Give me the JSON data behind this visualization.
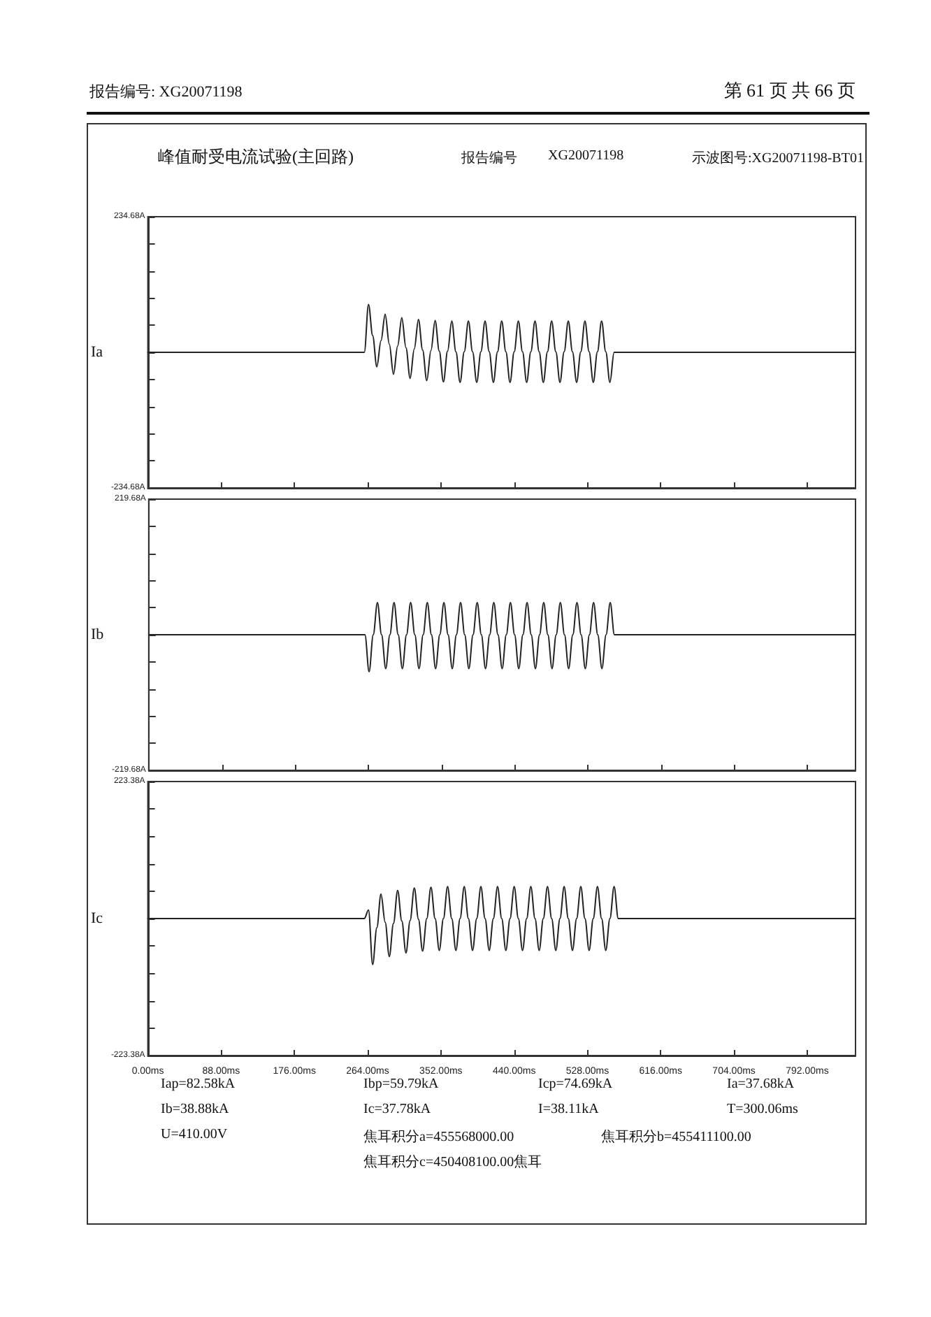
{
  "chart_data": [
    {
      "type": "line",
      "title": "峰值耐受电流试验(主回路)",
      "ylabel": "Ia",
      "tick_labels": "y",
      "annotations": [
        "报告编号: XG20071198",
        "第 61 页 共 66 页",
        "报告编号",
        "XG20071198",
        "示波图号:XG20071198-BT01"
      ],
      "xlim": [
        0,
        850
      ],
      "xticks": [
        {
          "value": 0,
          "label": null
        },
        {
          "value": 88,
          "label": null
        },
        {
          "value": 176,
          "label": null
        },
        {
          "value": 264,
          "label": null
        },
        {
          "value": 352,
          "label": null
        },
        {
          "value": 440,
          "label": null
        },
        {
          "value": 528,
          "label": null
        },
        {
          "value": 616,
          "label": null
        },
        {
          "value": 704,
          "label": null
        },
        {
          "value": 792,
          "label": null
        }
      ],
      "ylim": [
        -234.68,
        234.68
      ],
      "yticks": [
        {
          "value": -234.68,
          "label": "-234.68A"
        },
        {
          "value": -187.74,
          "label": null
        },
        {
          "value": -140.81,
          "label": null
        },
        {
          "value": -93.87,
          "label": null
        },
        {
          "value": -46.94,
          "label": null
        },
        {
          "value": 0,
          "label": null
        },
        {
          "value": 46.94,
          "label": null
        },
        {
          "value": 93.87,
          "label": null
        },
        {
          "value": 140.81,
          "label": null
        },
        {
          "value": 187.74,
          "label": null
        },
        {
          "value": 234.68,
          "label": "234.68A"
        }
      ],
      "series": [
        {
          "color": "#222222",
          "x": [
            0,
            260,
            265,
            270,
            275,
            280,
            285,
            290,
            295,
            300,
            305,
            310,
            315,
            320,
            325,
            330,
            335,
            340,
            345,
            350,
            355,
            360,
            365,
            370,
            375,
            380,
            385,
            390,
            395,
            400,
            405,
            410,
            415,
            420,
            425,
            430,
            435,
            440,
            445,
            450,
            455,
            460,
            465,
            470,
            475,
            480,
            485,
            490,
            495,
            500,
            505,
            510,
            515,
            520,
            525,
            530,
            535,
            540,
            545,
            550,
            555,
            560,
            850
          ],
          "values": [
            0,
            0,
            83,
            29,
            -25,
            20,
            66,
            14,
            -38,
            11,
            60,
            8,
            -45,
            6,
            57,
            4,
            -49,
            3,
            55,
            2,
            -51,
            2,
            54,
            1,
            -52,
            1,
            54,
            1,
            -52,
            1,
            54,
            1,
            -52,
            1,
            54,
            1,
            -52,
            1,
            54,
            1,
            -52,
            1,
            54,
            1,
            -52,
            1,
            54,
            1,
            -52,
            1,
            54,
            1,
            -52,
            1,
            54,
            1,
            -52,
            1,
            54,
            1,
            -52,
            0,
            0
          ]
        }
      ]
    },
    {
      "type": "line",
      "ylabel": "Ib",
      "tick_labels": "y",
      "xlim": [
        0,
        850
      ],
      "xticks": [
        {
          "value": 0,
          "label": null
        },
        {
          "value": 88,
          "label": null
        },
        {
          "value": 176,
          "label": null
        },
        {
          "value": 264,
          "label": null
        },
        {
          "value": 352,
          "label": null
        },
        {
          "value": 440,
          "label": null
        },
        {
          "value": 528,
          "label": null
        },
        {
          "value": 616,
          "label": null
        },
        {
          "value": 704,
          "label": null
        },
        {
          "value": 792,
          "label": null
        }
      ],
      "ylim": [
        -219.68,
        219.68
      ],
      "yticks": [
        {
          "value": -219.68,
          "label": "-219.68A"
        },
        {
          "value": -175.74,
          "label": null
        },
        {
          "value": -131.81,
          "label": null
        },
        {
          "value": -87.87,
          "label": null
        },
        {
          "value": -43.94,
          "label": null
        },
        {
          "value": 0,
          "label": null
        },
        {
          "value": 43.94,
          "label": null
        },
        {
          "value": 87.87,
          "label": null
        },
        {
          "value": 131.81,
          "label": null
        },
        {
          "value": 175.74,
          "label": null
        },
        {
          "value": 219.68,
          "label": "219.68A"
        }
      ],
      "series": [
        {
          "color": "#222222",
          "x": [
            0,
            260,
            265,
            270,
            275,
            280,
            285,
            290,
            295,
            300,
            305,
            310,
            315,
            320,
            325,
            330,
            335,
            340,
            345,
            350,
            355,
            360,
            365,
            370,
            375,
            380,
            385,
            390,
            395,
            400,
            405,
            410,
            415,
            420,
            425,
            430,
            435,
            440,
            445,
            450,
            455,
            460,
            465,
            470,
            475,
            480,
            485,
            490,
            495,
            500,
            505,
            510,
            515,
            520,
            525,
            530,
            535,
            540,
            545,
            550,
            555,
            560,
            850
          ],
          "values": [
            0,
            0,
            -60,
            0,
            52,
            0,
            -55,
            0,
            52,
            0,
            -55,
            0,
            52,
            0,
            -55,
            0,
            52,
            0,
            -55,
            0,
            52,
            0,
            -55,
            0,
            52,
            0,
            -55,
            0,
            52,
            0,
            -55,
            0,
            52,
            0,
            -55,
            0,
            52,
            0,
            -55,
            0,
            52,
            0,
            -55,
            0,
            52,
            0,
            -55,
            0,
            52,
            0,
            -55,
            0,
            52,
            0,
            -55,
            0,
            52,
            0,
            -55,
            0,
            52,
            0,
            0
          ]
        }
      ]
    },
    {
      "type": "line",
      "ylabel": "Ic",
      "annotations": [
        "Iap=82.58kA",
        "Ibp=59.79kA",
        "Icp=74.69kA",
        "Ia=37.68kA",
        "Ib=38.88kA",
        "Ic=37.78kA",
        "I=38.11kA",
        "T=300.06ms",
        "U=410.00V",
        "焦耳积分a=455568000.00",
        "焦耳积分b=455411100.00",
        "焦耳积分c=450408100.00焦耳"
      ],
      "xlim": [
        0,
        850
      ],
      "xticks": [
        {
          "value": 0,
          "label": "0.00ms"
        },
        {
          "value": 88,
          "label": "88.00ms"
        },
        {
          "value": 176,
          "label": "176.00ms"
        },
        {
          "value": 264,
          "label": "264.00ms"
        },
        {
          "value": 352,
          "label": "352.00ms"
        },
        {
          "value": 440,
          "label": "440.00ms"
        },
        {
          "value": 528,
          "label": "528.00ms"
        },
        {
          "value": 616,
          "label": "616.00ms"
        },
        {
          "value": 704,
          "label": "704.00ms"
        },
        {
          "value": 792,
          "label": "792.00ms"
        }
      ],
      "ylim": [
        -223.38,
        223.38
      ],
      "yticks": [
        {
          "value": -223.38,
          "label": "-223.38A"
        },
        {
          "value": -178.7,
          "label": null
        },
        {
          "value": -134.03,
          "label": null
        },
        {
          "value": -89.35,
          "label": null
        },
        {
          "value": -44.68,
          "label": null
        },
        {
          "value": 0,
          "label": null
        },
        {
          "value": 44.68,
          "label": null
        },
        {
          "value": 89.35,
          "label": null
        },
        {
          "value": 134.03,
          "label": null
        },
        {
          "value": 178.7,
          "label": null
        },
        {
          "value": 223.38,
          "label": "223.38A"
        }
      ],
      "series": [
        {
          "color": "#222222",
          "x": [
            0,
            260,
            265,
            270,
            275,
            280,
            285,
            290,
            295,
            300,
            305,
            310,
            315,
            320,
            325,
            330,
            335,
            340,
            345,
            350,
            355,
            360,
            365,
            370,
            375,
            380,
            385,
            390,
            395,
            400,
            405,
            410,
            415,
            420,
            425,
            430,
            435,
            440,
            445,
            450,
            455,
            460,
            465,
            470,
            475,
            480,
            485,
            490,
            495,
            500,
            505,
            510,
            515,
            520,
            525,
            530,
            535,
            540,
            545,
            550,
            555,
            560,
            565,
            850
          ],
          "values": [
            0,
            0,
            14,
            -75,
            -15,
            40,
            -6,
            -62,
            -8,
            46,
            -4,
            -56,
            -3,
            50,
            -1,
            -53,
            0,
            51,
            0,
            -52,
            0,
            52,
            0,
            -52,
            0,
            52,
            0,
            -52,
            0,
            52,
            0,
            -52,
            0,
            52,
            0,
            -52,
            0,
            52,
            0,
            -52,
            0,
            52,
            0,
            -52,
            0,
            52,
            0,
            -52,
            0,
            52,
            0,
            -52,
            0,
            52,
            0,
            -52,
            0,
            52,
            0,
            -52,
            0,
            52,
            0,
            0
          ]
        }
      ]
    }
  ]
}
